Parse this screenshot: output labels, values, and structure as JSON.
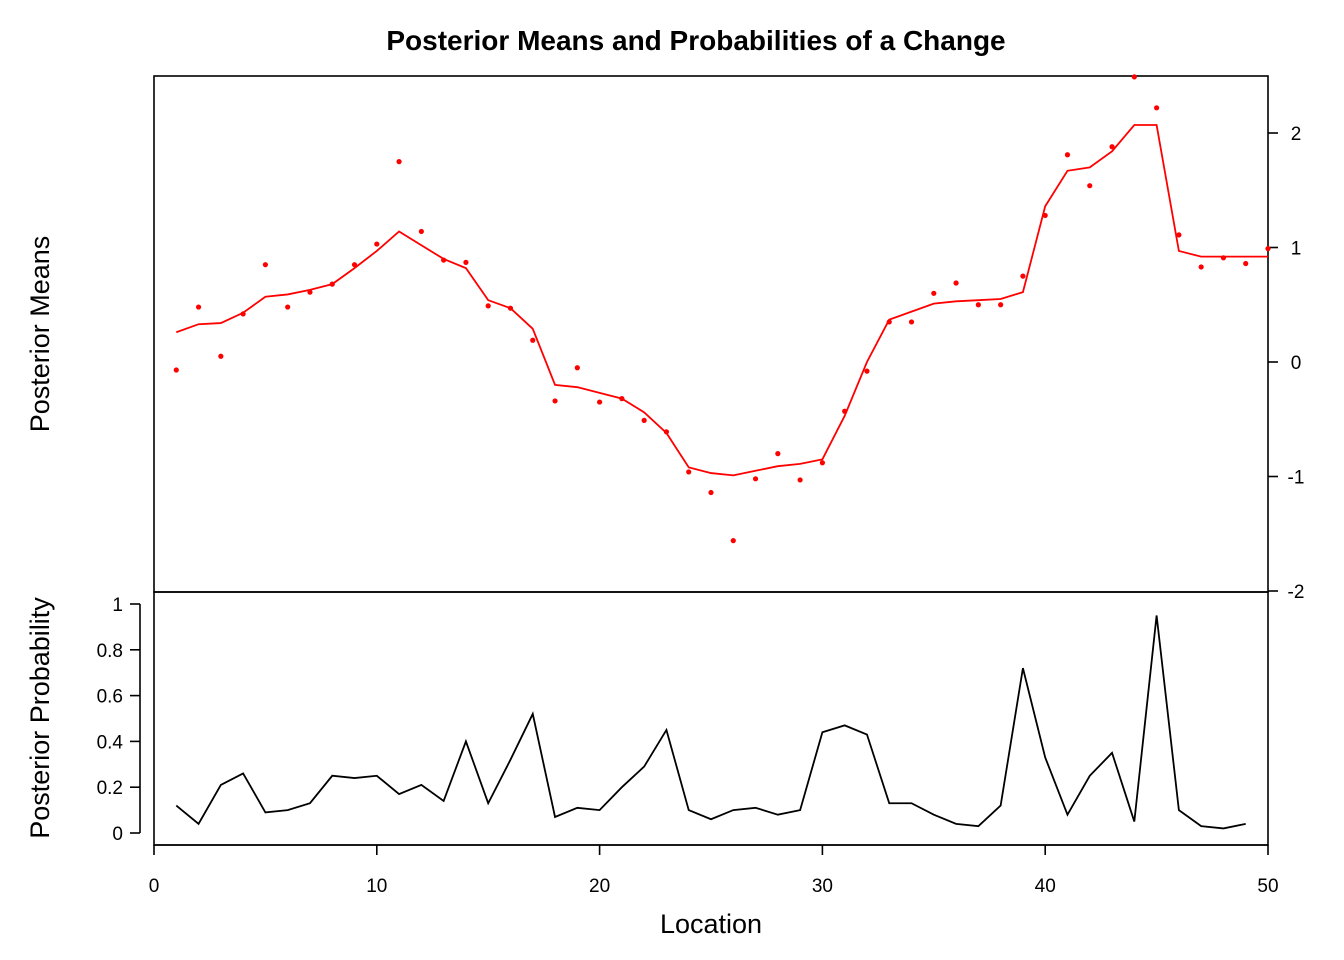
{
  "chart_data": [
    {
      "panel": "top",
      "type": "line+scatter",
      "title": "Posterior Means and Probabilities of a Change",
      "ylabel": "Posterior Means",
      "xlim": [
        0,
        50
      ],
      "ylim": [
        -2,
        2.5
      ],
      "y_axis_side": "right",
      "yticks": [
        -2,
        -1,
        0,
        1,
        2
      ],
      "line_color": "#ff0000",
      "point_color": "#ff0000",
      "x": [
        1,
        2,
        3,
        4,
        5,
        6,
        7,
        8,
        9,
        10,
        11,
        12,
        13,
        14,
        15,
        16,
        17,
        18,
        19,
        20,
        21,
        22,
        23,
        24,
        25,
        26,
        27,
        28,
        29,
        30,
        31,
        32,
        33,
        34,
        35,
        36,
        37,
        38,
        39,
        40,
        41,
        42,
        43,
        44,
        45,
        46,
        47,
        48,
        49,
        50
      ],
      "series": [
        {
          "kind": "line",
          "values": [
            0.26,
            0.33,
            0.34,
            0.43,
            0.57,
            0.59,
            0.63,
            0.68,
            0.82,
            0.97,
            1.14,
            1.02,
            0.9,
            0.82,
            0.54,
            0.47,
            0.29,
            -0.2,
            -0.22,
            -0.27,
            -0.32,
            -0.44,
            -0.62,
            -0.92,
            -0.97,
            -0.99,
            -0.95,
            -0.91,
            -0.89,
            -0.85,
            -0.47,
            0.0,
            0.37,
            0.44,
            0.51,
            0.53,
            0.54,
            0.55,
            0.61,
            1.36,
            1.67,
            1.7,
            1.84,
            2.07,
            2.07,
            0.97,
            0.92,
            0.92,
            0.92,
            0.92
          ]
        },
        {
          "kind": "points",
          "values": [
            -0.07,
            0.48,
            0.05,
            0.42,
            0.85,
            0.48,
            0.61,
            0.68,
            0.85,
            1.03,
            1.75,
            1.14,
            0.89,
            0.87,
            0.49,
            0.47,
            0.19,
            -0.34,
            -0.05,
            -0.35,
            -0.32,
            -0.51,
            -0.61,
            -0.96,
            -1.14,
            -1.56,
            -1.02,
            -0.8,
            -1.03,
            -0.88,
            -0.43,
            -0.08,
            0.35,
            0.35,
            0.6,
            0.69,
            0.5,
            0.5,
            0.75,
            1.28,
            1.81,
            1.54,
            1.88,
            2.49,
            2.22,
            1.11,
            0.83,
            0.91,
            0.86,
            0.99
          ]
        }
      ]
    },
    {
      "panel": "bottom",
      "type": "line",
      "xlabel": "Location",
      "ylabel": "Posterior Probability",
      "xlim": [
        0,
        50
      ],
      "xticks": [
        0,
        10,
        20,
        30,
        40,
        50
      ],
      "ylim": [
        0,
        1
      ],
      "yticks": [
        0,
        0.2,
        0.4,
        0.6,
        0.8,
        1
      ],
      "ytick_labels": [
        "0",
        "0.2",
        "0.4",
        "0.6",
        "0.8",
        "1"
      ],
      "line_color": "#000000",
      "x": [
        1,
        2,
        3,
        4,
        5,
        6,
        7,
        8,
        9,
        10,
        11,
        12,
        13,
        14,
        15,
        16,
        17,
        18,
        19,
        20,
        21,
        22,
        23,
        24,
        25,
        26,
        27,
        28,
        29,
        30,
        31,
        32,
        33,
        34,
        35,
        36,
        37,
        38,
        39,
        40,
        41,
        42,
        43,
        44,
        45,
        46,
        47,
        48,
        49
      ],
      "values": [
        0.12,
        0.04,
        0.21,
        0.26,
        0.09,
        0.1,
        0.13,
        0.25,
        0.24,
        0.25,
        0.17,
        0.21,
        0.14,
        0.4,
        0.13,
        0.32,
        0.52,
        0.07,
        0.11,
        0.1,
        0.2,
        0.29,
        0.45,
        0.1,
        0.06,
        0.1,
        0.11,
        0.08,
        0.1,
        0.44,
        0.47,
        0.43,
        0.13,
        0.13,
        0.08,
        0.04,
        0.03,
        0.12,
        0.72,
        0.33,
        0.08,
        0.25,
        0.35,
        0.05,
        0.95,
        0.1,
        0.03,
        0.02,
        0.04
      ]
    }
  ]
}
